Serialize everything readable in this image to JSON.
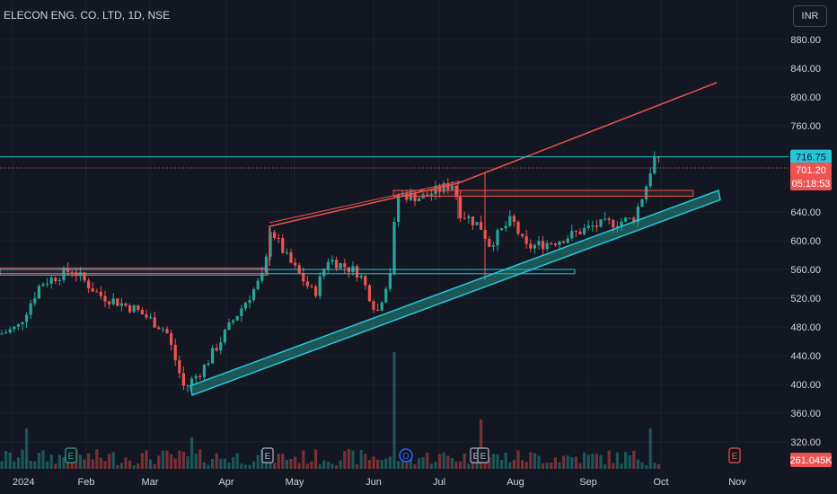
{
  "chart_title": "ELECON ENG. CO. LTD, 1D, NSE",
  "currency": "INR",
  "colors": {
    "up": "#26a69a",
    "down": "#ef5350",
    "grid": "#1e222d",
    "text": "#d1d4dc",
    "cyan": "#26c6da",
    "redline": "#ef5350"
  },
  "price_axis": {
    "ticks": [
      "880.00",
      "840.00",
      "800.00",
      "760.00",
      "640.00",
      "600.00",
      "560.00",
      "520.00",
      "480.00",
      "440.00",
      "400.00",
      "360.00",
      "320.00"
    ],
    "tick_values": [
      880,
      840,
      800,
      760,
      640,
      600,
      560,
      520,
      480,
      440,
      400,
      360,
      320
    ],
    "range": [
      290,
      905
    ]
  },
  "time_axis": {
    "labels": [
      "2024",
      "Feb",
      "Mar",
      "Apr",
      "May",
      "Jun",
      "Jul",
      "Aug",
      "Sep",
      "Oct",
      "Nov"
    ]
  },
  "price_labels": {
    "resistance": "716.75",
    "last": "701.20",
    "countdown": "05:18:53",
    "volume": "261.045K"
  },
  "event_markers": [
    "E",
    "E",
    "D",
    "E",
    "E",
    "E"
  ],
  "chart_data": {
    "type": "candlestick",
    "ylim": [
      290,
      905
    ],
    "resistance_level": 716.75,
    "last_price": 701.2
  }
}
